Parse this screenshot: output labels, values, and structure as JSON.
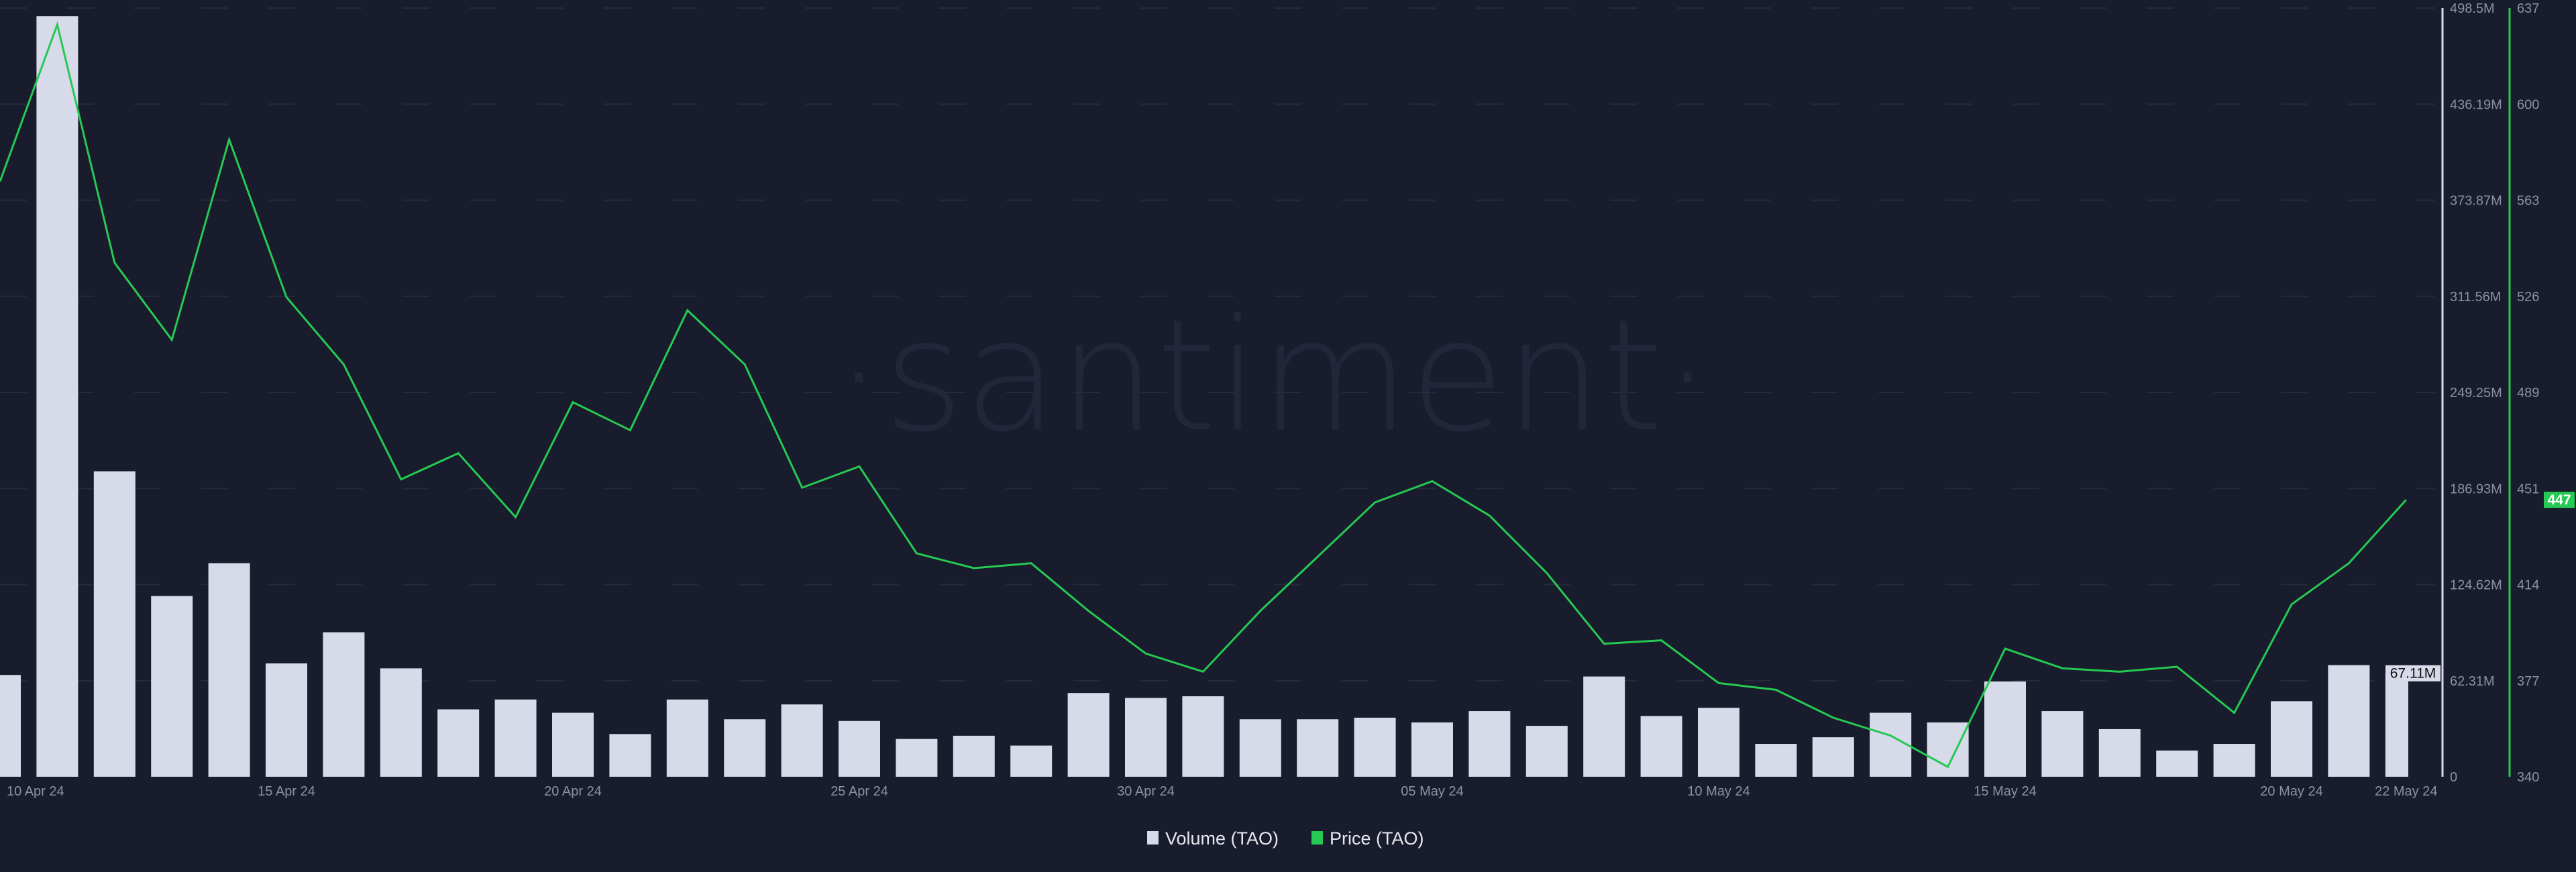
{
  "chart_data": {
    "type": "bar+line",
    "watermark": "·santiment·",
    "x": [
      "10 Apr",
      "11 Apr",
      "12 Apr",
      "13 Apr",
      "14 Apr",
      "15 Apr",
      "16 Apr",
      "17 Apr",
      "18 Apr",
      "19 Apr",
      "20 Apr",
      "21 Apr",
      "22 Apr",
      "23 Apr",
      "24 Apr",
      "25 Apr",
      "26 Apr",
      "27 Apr",
      "28 Apr",
      "29 Apr",
      "30 Apr",
      "01 May",
      "02 May",
      "03 May",
      "04 May",
      "05 May",
      "06 May",
      "07 May",
      "08 May",
      "09 May",
      "10 May",
      "11 May",
      "12 May",
      "13 May",
      "14 May",
      "15 May",
      "16 May",
      "17 May",
      "18 May",
      "19 May",
      "20 May",
      "21 May",
      "22 May"
    ],
    "x_tick_labels": [
      "10 Apr 24",
      "15 Apr 24",
      "20 Apr 24",
      "25 Apr 24",
      "30 Apr 24",
      "05 May 24",
      "10 May 24",
      "15 May 24",
      "20 May 24",
      "22 May 24"
    ],
    "series": [
      {
        "name": "Volume (TAO)",
        "type": "bar",
        "axis": "left-inner",
        "color": "#d7dae9",
        "unit": "M",
        "values": [
          66.0,
          493.2,
          198.1,
          117.2,
          138.5,
          73.5,
          93.7,
          70.3,
          43.7,
          50.1,
          41.5,
          27.7,
          50.1,
          37.3,
          46.9,
          36.2,
          24.5,
          26.6,
          20.2,
          54.3,
          51.1,
          52.2,
          37.3,
          37.3,
          38.3,
          35.2,
          42.6,
          33.0,
          65.0,
          39.4,
          44.7,
          21.3,
          25.6,
          41.5,
          35.2,
          61.8,
          42.6,
          30.9,
          17.0,
          21.3,
          49.0,
          72.4,
          67.11
        ]
      },
      {
        "name": "Price (TAO)",
        "type": "line",
        "axis": "right",
        "color": "#26c953",
        "values": [
          570,
          630.6,
          538.6,
          508.8,
          586.2,
          525.3,
          499.3,
          454.9,
          465.0,
          440.3,
          484.7,
          473.9,
          520.2,
          499.3,
          451.7,
          459.9,
          426.3,
          420.6,
          422.5,
          404.1,
          387.6,
          380.6,
          404.1,
          425.0,
          446.0,
          454.2,
          440.9,
          418.7,
          391.4,
          392.7,
          376.2,
          373.6,
          362.8,
          355.9,
          343.8,
          389.5,
          381.9,
          380.6,
          382.5,
          364.7,
          406.6,
          422.5,
          447
        ]
      }
    ],
    "volume_axis": {
      "range": [
        0,
        498.5
      ],
      "ticks": [
        "0",
        "62.31M",
        "124.62M",
        "186.93M",
        "249.25M",
        "311.56M",
        "373.87M",
        "436.19M",
        "498.5M"
      ],
      "current_label": "67.11M"
    },
    "price_axis": {
      "range": [
        340,
        637
      ],
      "ticks": [
        "340",
        "377",
        "414",
        "451",
        "489",
        "526",
        "563",
        "600",
        "637"
      ],
      "current_label": "447"
    },
    "legend": {
      "position": "bottom-center",
      "items": [
        {
          "label": "Volume (TAO)",
          "color": "#d7dae9"
        },
        {
          "label": "Price (TAO)",
          "color": "#26c953"
        }
      ]
    },
    "grid": true
  }
}
